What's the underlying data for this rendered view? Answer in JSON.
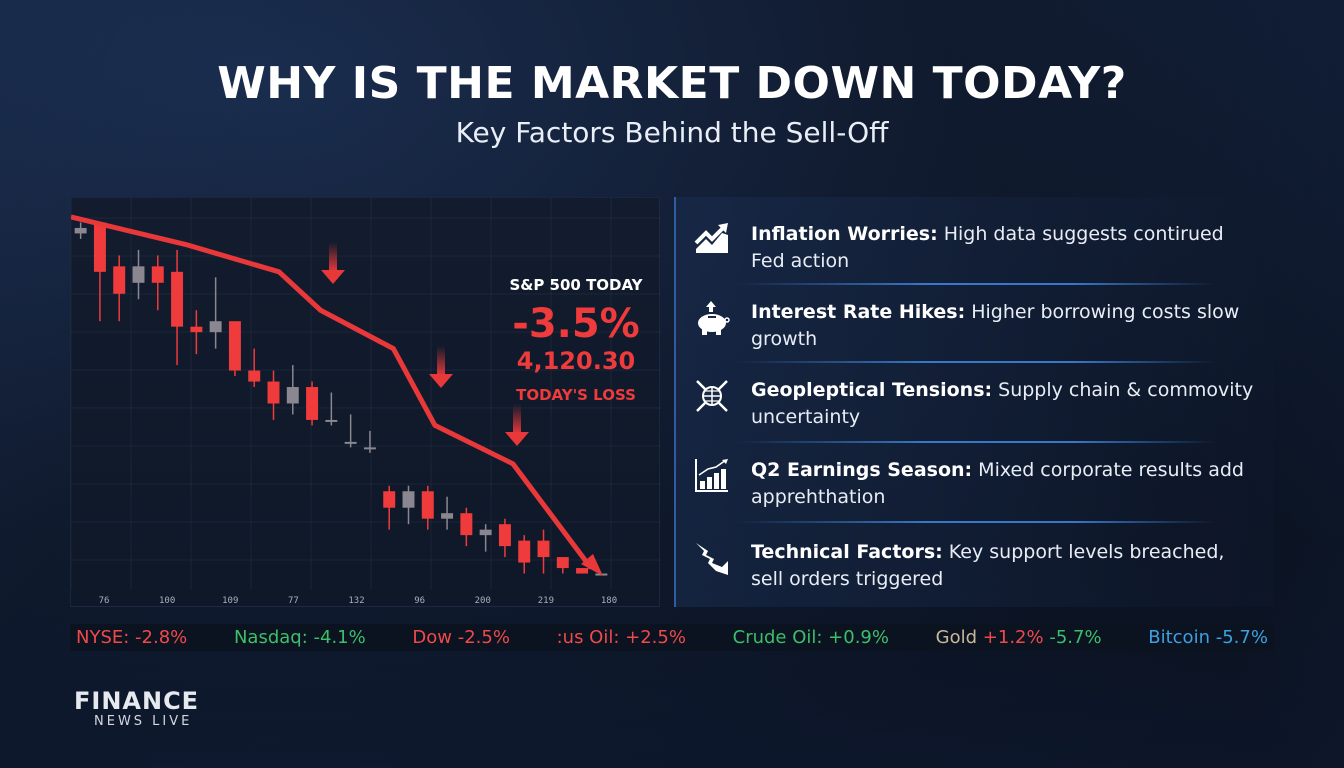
{
  "header": {
    "title": "WHY IS THE MARKET DOWN TODAY?",
    "subtitle": "Key Factors Behind the Sell-Off"
  },
  "colors": {
    "red": "#ef3b3b",
    "green": "#3cbf6a",
    "neutral_candle": "#8a8790",
    "accent_blue": "#2f5da0",
    "bg": "#0f1828"
  },
  "summary": {
    "label": "S&P 500 TODAY",
    "change_pct": "-3.5%",
    "value": "4,120.30",
    "caption": "TODAY'S LOSS"
  },
  "chart_data": {
    "type": "candlestick",
    "title": "S&P 500 TODAY",
    "xlabel": "",
    "ylabel": "",
    "grid": true,
    "x_tick_labels": [
      "76",
      "100",
      "109",
      "77",
      "132",
      "96",
      "200",
      "219",
      "180"
    ],
    "candles": [
      {
        "o": 96,
        "h": 97,
        "l": 94,
        "c": 95,
        "color": "neutral"
      },
      {
        "o": 97,
        "h": 97,
        "l": 79,
        "c": 88,
        "color": "red"
      },
      {
        "o": 89,
        "h": 91,
        "l": 79,
        "c": 84,
        "color": "red"
      },
      {
        "o": 86,
        "h": 92,
        "l": 83,
        "c": 89,
        "color": "neutral"
      },
      {
        "o": 89,
        "h": 91,
        "l": 81,
        "c": 86,
        "color": "red"
      },
      {
        "o": 88,
        "h": 92,
        "l": 71,
        "c": 78,
        "color": "red"
      },
      {
        "o": 78,
        "h": 81,
        "l": 73,
        "c": 77,
        "color": "red"
      },
      {
        "o": 77,
        "h": 87,
        "l": 74,
        "c": 79,
        "color": "neutral"
      },
      {
        "o": 79,
        "h": 79,
        "l": 69,
        "c": 70,
        "color": "red"
      },
      {
        "o": 70,
        "h": 74,
        "l": 67,
        "c": 68,
        "color": "red"
      },
      {
        "o": 68,
        "h": 70,
        "l": 61,
        "c": 64,
        "color": "red"
      },
      {
        "o": 64,
        "h": 71,
        "l": 62,
        "c": 67,
        "color": "neutral"
      },
      {
        "o": 67,
        "h": 68,
        "l": 60,
        "c": 61,
        "color": "red"
      },
      {
        "o": 61,
        "h": 66,
        "l": 60,
        "c": 61,
        "color": "neutral"
      },
      {
        "o": 57,
        "h": 62,
        "l": 56,
        "c": 57,
        "color": "neutral"
      },
      {
        "o": 56,
        "h": 59,
        "l": 55,
        "c": 56,
        "color": "neutral"
      },
      {
        "o": 48,
        "h": 49,
        "l": 41,
        "c": 45,
        "color": "red"
      },
      {
        "o": 45,
        "h": 49,
        "l": 42,
        "c": 48,
        "color": "neutral"
      },
      {
        "o": 48,
        "h": 49,
        "l": 41,
        "c": 43,
        "color": "red"
      },
      {
        "o": 44,
        "h": 47,
        "l": 41,
        "c": 43,
        "color": "neutral"
      },
      {
        "o": 44,
        "h": 45,
        "l": 38,
        "c": 40,
        "color": "red"
      },
      {
        "o": 41,
        "h": 42,
        "l": 37,
        "c": 40,
        "color": "neutral"
      },
      {
        "o": 42,
        "h": 43,
        "l": 36,
        "c": 38,
        "color": "red"
      },
      {
        "o": 39,
        "h": 40,
        "l": 33,
        "c": 35,
        "color": "red"
      },
      {
        "o": 39,
        "h": 41,
        "l": 33,
        "c": 36,
        "color": "red"
      },
      {
        "o": 36,
        "h": 36,
        "l": 33,
        "c": 34,
        "color": "red"
      },
      {
        "o": 34,
        "h": 34,
        "l": 33,
        "c": 33,
        "color": "red"
      },
      {
        "o": 33,
        "h": 33,
        "l": 33,
        "c": 33,
        "color": "neutral"
      }
    ],
    "trend_line": {
      "color": "#e8383a",
      "points": [
        [
          0,
          98
        ],
        [
          0.22,
          93
        ],
        [
          0.4,
          88
        ],
        [
          0.48,
          81
        ],
        [
          0.62,
          74
        ],
        [
          0.7,
          60
        ],
        [
          0.85,
          53
        ],
        [
          1.0,
          34
        ]
      ]
    },
    "annotations": [
      "down-arrow",
      "down-arrow",
      "down-arrow"
    ],
    "summary_label": "S&P 500 TODAY -3.5% 4,120.30 TODAY'S LOSS"
  },
  "factors": [
    {
      "icon": "trend-up-icon",
      "title": "Inflation Worries:",
      "body": " High data suggests contirued Fed action"
    },
    {
      "icon": "piggy-bank-icon",
      "title": "Interest Rate Hikes:",
      "body": " Higher borrowing costs slow growth"
    },
    {
      "icon": "globe-conflict-icon",
      "title": "Geopleptical Tensions:",
      "body": " Supply chain & commovity uncertainty"
    },
    {
      "icon": "bar-chart-icon",
      "title": "Q2 Earnings Season:",
      "body": " Mixed corporate results add apprehthation"
    },
    {
      "icon": "lightning-break-icon",
      "title": "Technical Factors:",
      "body": " Key support levels breached, sell orders triggered"
    }
  ],
  "ticker": [
    {
      "text": "NYSE: -2.8%",
      "color": "red"
    },
    {
      "text": "Nasdaq: -4.1%",
      "color": "green"
    },
    {
      "text": "Dow -2.5%",
      "color": "red"
    },
    {
      "text": ":us Oil: +2.5%",
      "color": "red"
    },
    {
      "text": "Crude Oil: +0.9%",
      "color": "green"
    },
    {
      "label": "Gold",
      "change1": "+1.2%",
      "change2": "-5.7%",
      "color": "tan"
    },
    {
      "text": "Bitcoin -5.7%",
      "color": "blue"
    }
  ],
  "logo": {
    "top": "FINANCE",
    "bottom": "NEWS LIVE"
  }
}
